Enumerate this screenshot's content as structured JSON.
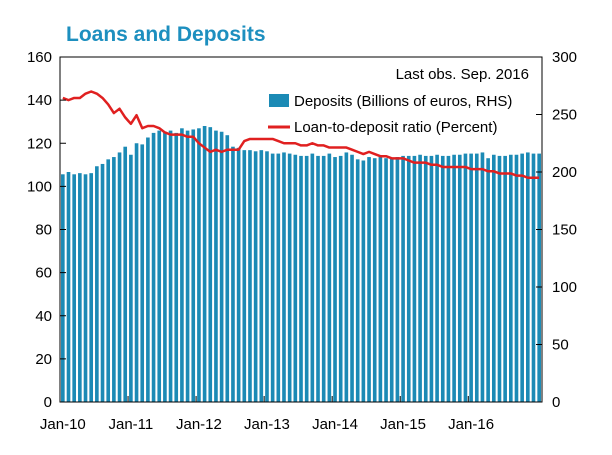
{
  "chart_data": {
    "type": "bar+line",
    "title": "Loans and Deposits",
    "title_color": "#1d8fbf",
    "note": "Last obs. Sep. 2016",
    "legend_placement": "top-right",
    "grid": false,
    "x_tick_labels": [
      "Jan-10",
      "Jan-11",
      "Jan-12",
      "Jan-13",
      "Jan-14",
      "Jan-15",
      "Jan-16"
    ],
    "y_left": {
      "min": 0,
      "max": 160,
      "ticks": [
        "0",
        "20",
        "40",
        "60",
        "80",
        "100",
        "120",
        "140",
        "160"
      ]
    },
    "y_right": {
      "min": 0,
      "max": 300,
      "ticks": [
        "0",
        "50",
        "100",
        "150",
        "200",
        "250",
        "300"
      ]
    },
    "series": [
      {
        "name": "Deposits (Billions of euros, RHS)",
        "type": "bar",
        "axis": "right",
        "color": "#1b8ab5",
        "values": [
          198,
          200,
          198,
          199,
          198,
          199,
          205,
          207,
          211,
          213,
          217,
          222,
          215,
          225,
          224,
          230,
          234,
          236,
          235,
          236,
          234,
          238,
          236,
          237,
          238,
          240,
          239,
          236,
          235,
          232,
          222,
          221,
          219,
          219,
          218,
          219,
          218,
          216,
          216,
          217,
          216,
          215,
          214,
          214,
          216,
          214,
          214,
          216,
          213,
          214,
          217,
          215,
          211,
          210,
          213,
          212,
          213,
          212,
          212,
          213,
          214,
          214,
          214,
          215,
          214,
          214,
          215,
          214,
          214,
          215,
          215,
          216,
          216,
          216,
          217,
          212,
          215,
          214,
          214,
          215,
          215,
          216,
          217,
          216,
          216
        ]
      },
      {
        "name": "Loan-to-deposit ratio (Percent)",
        "type": "line",
        "axis": "left",
        "color": "#e02020",
        "values": [
          141,
          140,
          141,
          141,
          143,
          144,
          143,
          141,
          138,
          134,
          136,
          132,
          129,
          133,
          127,
          128,
          128,
          127,
          125,
          124,
          124,
          124,
          123,
          123,
          120,
          118,
          116,
          117,
          116,
          117,
          117,
          117,
          121,
          122,
          122,
          122,
          122,
          122,
          121,
          120,
          120,
          120,
          119,
          119,
          120,
          119,
          119,
          118,
          118,
          118,
          118,
          117,
          116,
          115,
          116,
          115,
          114,
          114,
          113,
          113,
          113,
          112,
          111,
          111,
          111,
          110,
          110,
          109,
          109,
          109,
          109,
          109,
          108,
          108,
          108,
          107,
          107,
          106,
          106,
          106,
          105,
          105,
          104,
          104,
          104
        ]
      }
    ]
  }
}
